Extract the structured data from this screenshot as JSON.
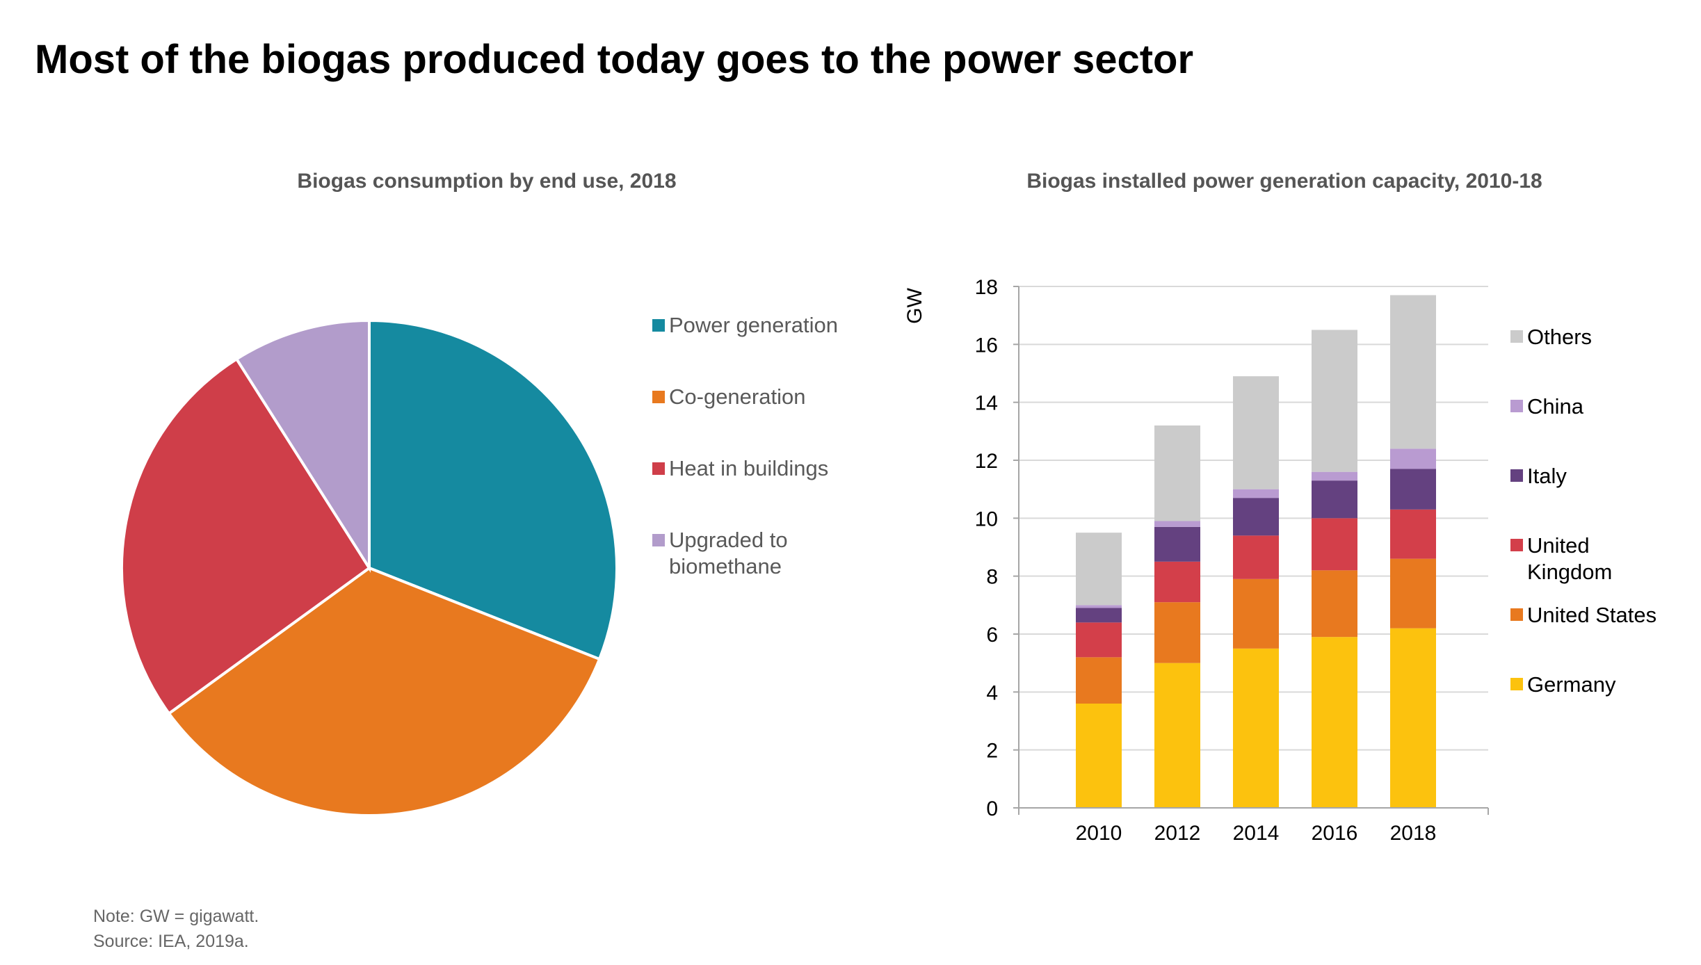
{
  "title": "Most of the biogas produced today goes to the power sector",
  "colors": {
    "power_generation": "#158aa0",
    "co_generation": "#e8791f",
    "heat_in_buildings": "#cf3e49",
    "upgraded": "#b29ccb",
    "germany": "#fcc20e",
    "united_states": "#e8791f",
    "united_kingdom": "#d33f4a",
    "italy": "#644180",
    "china": "#b99bd1",
    "others": "#cbcbcb"
  },
  "chart_data": [
    {
      "type": "pie",
      "title": "Biogas consumption by end use, 2018",
      "legend_position": "right",
      "slices": [
        {
          "label": "Power generation",
          "value": 31,
          "color": "#158aa0"
        },
        {
          "label": "Co-generation",
          "value": 34,
          "color": "#e8791f"
        },
        {
          "label": "Heat in buildings",
          "value": 26,
          "color": "#cf3e49"
        },
        {
          "label": "Upgraded to biomethane",
          "value": 9,
          "color": "#b29ccb"
        }
      ]
    },
    {
      "type": "bar",
      "stacked": true,
      "title": "Biogas installed power generation capacity, 2010-18",
      "ylabel": "GW",
      "xlabel": "",
      "categories": [
        "2010",
        "2012",
        "2014",
        "2016",
        "2018"
      ],
      "ylim": [
        0,
        18
      ],
      "yticks": [
        0,
        2,
        4,
        6,
        8,
        10,
        12,
        14,
        16,
        18
      ],
      "grid": true,
      "legend_position": "right",
      "series": [
        {
          "name": "Germany",
          "color": "#fcc20e",
          "values": [
            3.6,
            5.0,
            5.5,
            5.9,
            6.2
          ]
        },
        {
          "name": "United States",
          "color": "#e8791f",
          "values": [
            1.6,
            2.1,
            2.4,
            2.3,
            2.4
          ]
        },
        {
          "name": "United Kingdom",
          "color": "#d33f4a",
          "values": [
            1.2,
            1.4,
            1.5,
            1.8,
            1.7
          ]
        },
        {
          "name": "Italy",
          "color": "#644180",
          "values": [
            0.5,
            1.2,
            1.3,
            1.3,
            1.4
          ]
        },
        {
          "name": "China",
          "color": "#b99bd1",
          "values": [
            0.1,
            0.2,
            0.3,
            0.3,
            0.7
          ]
        },
        {
          "name": "Others",
          "color": "#cbcbcb",
          "values": [
            2.5,
            3.3,
            3.9,
            4.9,
            5.3
          ]
        }
      ]
    }
  ],
  "notes": {
    "note": "Note: GW = gigawatt.",
    "source": "Source: IEA, 2019a."
  }
}
